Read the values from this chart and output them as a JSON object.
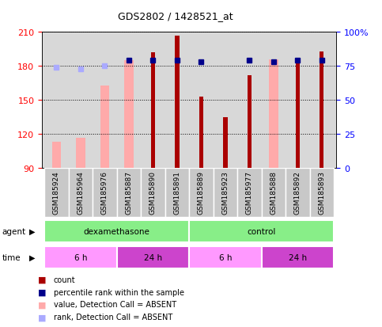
{
  "title": "GDS2802 / 1428521_at",
  "samples": [
    "GSM185924",
    "GSM185964",
    "GSM185976",
    "GSM185887",
    "GSM185890",
    "GSM185891",
    "GSM185889",
    "GSM185923",
    "GSM185977",
    "GSM185888",
    "GSM185892",
    "GSM185893"
  ],
  "count_values": [
    90,
    90,
    90,
    90,
    192,
    207,
    153,
    135,
    172,
    90,
    183,
    193
  ],
  "absent_value_tops": [
    113,
    117,
    163,
    185,
    null,
    null,
    null,
    null,
    null,
    186,
    null,
    null
  ],
  "percentile_rank_values": [
    null,
    null,
    null,
    79,
    79,
    79,
    78,
    null,
    79,
    78,
    79,
    79
  ],
  "rank_absent_values": [
    74,
    73,
    75,
    null,
    null,
    null,
    null,
    null,
    null,
    null,
    null,
    null
  ],
  "ylim_left": [
    90,
    210
  ],
  "ylim_right": [
    0,
    100
  ],
  "yticks_left": [
    90,
    120,
    150,
    180,
    210
  ],
  "yticks_right": [
    0,
    25,
    50,
    75,
    100
  ],
  "count_color": "#aa0000",
  "absent_value_color": "#ffaaaa",
  "absent_rank_color": "#aaaaff",
  "percentile_color": "#00008b",
  "plot_bg": "#d8d8d8",
  "xtick_bg": "#c8c8c8",
  "agent_color": "#88ee88",
  "time_6h_color": "#ff99ff",
  "time_24h_color": "#cc44cc",
  "legend_items": [
    {
      "label": "count",
      "color": "#aa0000"
    },
    {
      "label": "percentile rank within the sample",
      "color": "#00008b"
    },
    {
      "label": "value, Detection Call = ABSENT",
      "color": "#ffaaaa"
    },
    {
      "label": "rank, Detection Call = ABSENT",
      "color": "#aaaaff"
    }
  ]
}
